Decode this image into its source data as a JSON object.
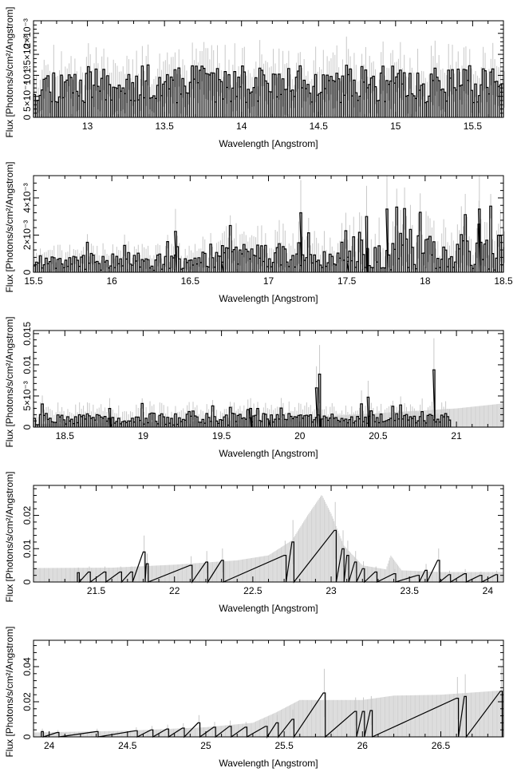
{
  "figure": {
    "background": "#ffffff",
    "data_color": "#000000",
    "errorbar_color": "#c8c8c8",
    "model_color": "#d2d2d2"
  },
  "chart_data": [
    {
      "type": "line",
      "style": "histogram-step",
      "xlabel": "Wavelength [Angstrom]",
      "ylabel": "Flux [Photons/s/cm²/Angstrom]",
      "xlim": [
        12.65,
        15.7
      ],
      "ylim": [
        0,
        0.0023
      ],
      "xticks": [
        {
          "v": 13,
          "label": "13"
        },
        {
          "v": 13.5,
          "label": "13.5"
        },
        {
          "v": 14,
          "label": "14"
        },
        {
          "v": 14.5,
          "label": "14.5"
        },
        {
          "v": 15,
          "label": "15"
        },
        {
          "v": 15.5,
          "label": "15.5"
        }
      ],
      "yticks": [
        {
          "v": 0,
          "label": "0"
        },
        {
          "v": 0.0005,
          "label": "5×10⁻⁴"
        },
        {
          "v": 0.001,
          "label": "10⁻³"
        },
        {
          "v": 0.0015,
          "label": "1.5×10⁻³"
        },
        {
          "v": 0.002,
          "label": "2×10⁻³"
        }
      ],
      "spans": [
        {
          "from": 12.65,
          "to": 15.7,
          "ytyp": 0.00078,
          "amp": 0.00045,
          "prob": 0.08,
          "peakmax": 0.00125,
          "errfrac": 0.55,
          "seed": 11
        }
      ],
      "model": [],
      "highlights": []
    },
    {
      "type": "line",
      "style": "histogram-step",
      "xlabel": "Wavelength [Angstrom]",
      "ylabel": "Flux [Photons/s/cm²/Angstrom]",
      "xlim": [
        15.5,
        18.5
      ],
      "ylim": [
        0,
        0.0052
      ],
      "xticks": [
        {
          "v": 15.5,
          "label": "15.5"
        },
        {
          "v": 16,
          "label": "16"
        },
        {
          "v": 16.5,
          "label": "16.5"
        },
        {
          "v": 17,
          "label": "17"
        },
        {
          "v": 17.5,
          "label": "17.5"
        },
        {
          "v": 18,
          "label": "18"
        },
        {
          "v": 18.5,
          "label": "18.5"
        }
      ],
      "yticks": [
        {
          "v": 0,
          "label": "0"
        },
        {
          "v": 0.002,
          "label": "2×10⁻³"
        },
        {
          "v": 0.004,
          "label": "4×10⁻³"
        }
      ],
      "spans": [
        {
          "from": 15.5,
          "to": 16.7,
          "ytyp": 0.0006,
          "amp": 0.0005,
          "prob": 0.06,
          "peakmax": 0.0022,
          "errfrac": 0.9,
          "seed": 21
        },
        {
          "from": 16.7,
          "to": 17.5,
          "ytyp": 0.0009,
          "amp": 0.0007,
          "prob": 0.1,
          "peakmax": 0.003,
          "errfrac": 0.9,
          "seed": 22
        },
        {
          "from": 17.5,
          "to": 18.5,
          "ytyp": 0.0011,
          "amp": 0.001,
          "prob": 0.18,
          "peakmax": 0.0036,
          "errfrac": 0.9,
          "seed": 23
        }
      ],
      "model": [],
      "highlights": [
        [
          16.4,
          0.0022
        ],
        [
          17.2,
          0.0032
        ],
        [
          17.62,
          0.003
        ],
        [
          17.75,
          0.0034
        ],
        [
          18.34,
          0.0034
        ]
      ]
    },
    {
      "type": "line",
      "style": "histogram-step",
      "xlabel": "Wavelength [Angstrom]",
      "ylabel": "Flux [Photons/s/cm²/Angstrom]",
      "xlim": [
        18.3,
        21.3
      ],
      "ylim": [
        0,
        0.0155
      ],
      "xticks": [
        {
          "v": 18.5,
          "label": "18.5"
        },
        {
          "v": 19,
          "label": "19"
        },
        {
          "v": 19.5,
          "label": "19.5"
        },
        {
          "v": 20,
          "label": "20"
        },
        {
          "v": 20.5,
          "label": "20.5"
        },
        {
          "v": 21,
          "label": "21"
        }
      ],
      "yticks": [
        {
          "v": 0,
          "label": "0"
        },
        {
          "v": 0.005,
          "label": "5×10⁻³"
        },
        {
          "v": 0.01,
          "label": "0.01"
        },
        {
          "v": 0.015,
          "label": "0.015"
        }
      ],
      "spans": [
        {
          "from": 18.3,
          "to": 19.8,
          "ytyp": 0.0013,
          "amp": 0.001,
          "prob": 0.1,
          "peakmax": 0.0038,
          "errfrac": 1.0,
          "seed": 31
        },
        {
          "from": 19.8,
          "to": 20.95,
          "ytyp": 0.0014,
          "amp": 0.0008,
          "prob": 0.05,
          "peakmax": 0.004,
          "errfrac": 1.0,
          "seed": 32
        }
      ],
      "model": [
        [
          18.3,
          0.0005
        ],
        [
          19.0,
          0.0008
        ],
        [
          19.8,
          0.0012
        ],
        [
          20.2,
          0.0018
        ],
        [
          20.6,
          0.0024
        ],
        [
          21.0,
          0.003
        ],
        [
          21.3,
          0.0038
        ]
      ],
      "highlights": [
        [
          20.1,
          0.0063
        ],
        [
          20.12,
          0.0085
        ],
        [
          20.85,
          0.0092
        ],
        [
          20.43,
          0.0048
        ],
        [
          19.68,
          0.003
        ],
        [
          18.78,
          0.003
        ]
      ]
    },
    {
      "type": "line",
      "style": "histogram-step",
      "xlabel": "Wavelength [Angstrom]",
      "ylabel": "Flux [Photons/s/cm²/Angstrom]",
      "xlim": [
        21.1,
        24.1
      ],
      "ylim": [
        0,
        0.029
      ],
      "xticks": [
        {
          "v": 21.5,
          "label": "21.5"
        },
        {
          "v": 22,
          "label": "22"
        },
        {
          "v": 22.5,
          "label": "22.5"
        },
        {
          "v": 23,
          "label": "23"
        },
        {
          "v": 23.5,
          "label": "23.5"
        },
        {
          "v": 24,
          "label": "24"
        }
      ],
      "yticks": [
        {
          "v": 0,
          "label": "0"
        },
        {
          "v": 0.01,
          "label": "0.01"
        },
        {
          "v": 0.02,
          "label": "0.02"
        }
      ],
      "spans": [],
      "model": [
        [
          21.1,
          0.0042
        ],
        [
          21.6,
          0.0043
        ],
        [
          22.0,
          0.0052
        ],
        [
          22.4,
          0.0065
        ],
        [
          22.6,
          0.008
        ],
        [
          22.75,
          0.0125
        ],
        [
          22.85,
          0.02
        ],
        [
          22.94,
          0.0262
        ],
        [
          23.0,
          0.0205
        ],
        [
          23.08,
          0.011
        ],
        [
          23.2,
          0.005
        ],
        [
          23.35,
          0.0038
        ],
        [
          23.38,
          0.008
        ],
        [
          23.45,
          0.0035
        ],
        [
          23.7,
          0.003
        ],
        [
          24.1,
          0.003
        ]
      ],
      "highlights": [
        [
          21.38,
          0.0028
        ],
        [
          21.45,
          0.003
        ],
        [
          21.55,
          0.003
        ],
        [
          21.65,
          0.003
        ],
        [
          21.72,
          0.003
        ],
        [
          21.8,
          0.009
        ],
        [
          21.82,
          0.0055
        ],
        [
          22.1,
          0.005
        ],
        [
          22.2,
          0.006
        ],
        [
          22.3,
          0.0065
        ],
        [
          22.7,
          0.008
        ],
        [
          22.75,
          0.012
        ],
        [
          23.02,
          0.0155
        ],
        [
          23.07,
          0.01
        ],
        [
          23.1,
          0.008
        ],
        [
          23.15,
          0.006
        ],
        [
          23.2,
          0.004
        ],
        [
          23.28,
          0.003
        ],
        [
          23.4,
          0.0025
        ],
        [
          23.55,
          0.002
        ],
        [
          23.6,
          0.0035
        ],
        [
          23.68,
          0.0065
        ],
        [
          23.75,
          0.0022
        ],
        [
          23.85,
          0.0025
        ],
        [
          23.95,
          0.002
        ],
        [
          24.05,
          0.0022
        ]
      ]
    },
    {
      "type": "line",
      "style": "histogram-step",
      "xlabel": "Wavelength [Angstrom]",
      "ylabel": "Flux [Photons/s/cm²/Angstrom]",
      "xlim": [
        23.9,
        26.9
      ],
      "ylim": [
        0,
        0.055
      ],
      "xticks": [
        {
          "v": 24,
          "label": "24"
        },
        {
          "v": 24.5,
          "label": "24.5"
        },
        {
          "v": 25,
          "label": "25"
        },
        {
          "v": 25.5,
          "label": "25.5"
        },
        {
          "v": 26,
          "label": "26"
        },
        {
          "v": 26.5,
          "label": "26.5"
        }
      ],
      "yticks": [
        {
          "v": 0,
          "label": "0"
        },
        {
          "v": 0.02,
          "label": "0.02"
        },
        {
          "v": 0.04,
          "label": "0.04"
        }
      ],
      "spans": [],
      "model": [
        [
          23.9,
          0.0025
        ],
        [
          24.5,
          0.0035
        ],
        [
          25.0,
          0.0055
        ],
        [
          25.3,
          0.008
        ],
        [
          25.45,
          0.014
        ],
        [
          25.6,
          0.021
        ],
        [
          26.0,
          0.021
        ],
        [
          26.2,
          0.0235
        ],
        [
          26.5,
          0.024
        ],
        [
          26.9,
          0.0265
        ]
      ],
      "highlights": [
        [
          23.95,
          0.003
        ],
        [
          24.05,
          0.0025
        ],
        [
          24.3,
          0.003
        ],
        [
          24.55,
          0.0035
        ],
        [
          24.65,
          0.004
        ],
        [
          24.75,
          0.0045
        ],
        [
          24.85,
          0.005
        ],
        [
          24.95,
          0.008
        ],
        [
          25.05,
          0.0055
        ],
        [
          25.15,
          0.006
        ],
        [
          25.25,
          0.0055
        ],
        [
          25.38,
          0.006
        ],
        [
          25.45,
          0.008
        ],
        [
          25.55,
          0.01
        ],
        [
          25.75,
          0.025
        ],
        [
          25.95,
          0.0145
        ],
        [
          26.0,
          0.0145
        ],
        [
          26.05,
          0.015
        ],
        [
          26.6,
          0.022
        ],
        [
          26.65,
          0.023
        ],
        [
          26.88,
          0.026
        ]
      ]
    }
  ]
}
